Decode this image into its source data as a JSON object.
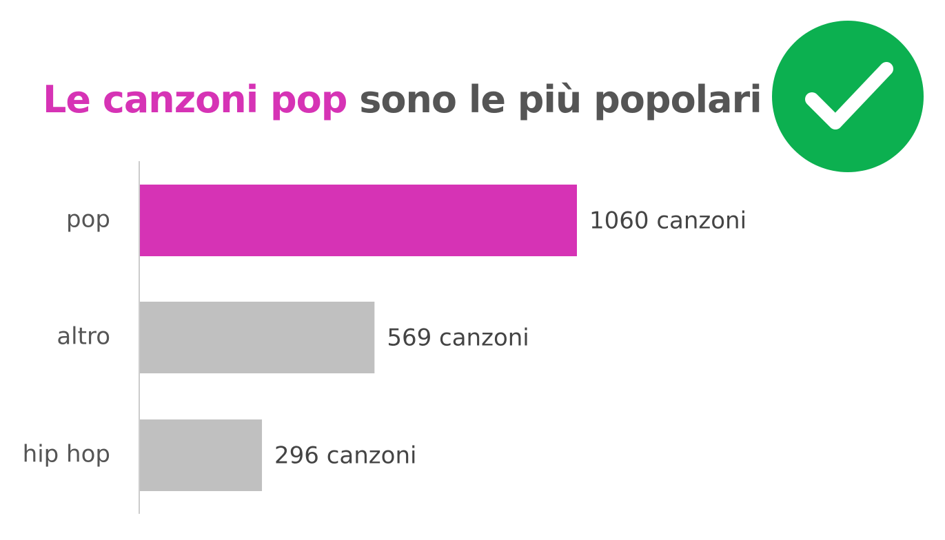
{
  "title": {
    "highlight": "Le canzoni pop",
    "rest": "sono le più popolari",
    "highlight_color": "#d633b5",
    "rest_color": "#555555"
  },
  "badge": {
    "icon": "check-icon",
    "color": "#0cb050"
  },
  "chart_data": {
    "type": "bar",
    "orientation": "horizontal",
    "categories": [
      "pop",
      "altro",
      "hip hop"
    ],
    "values": [
      1060,
      569,
      296
    ],
    "value_labels": [
      "1060 canzoni",
      "569 canzoni",
      "296 canzoni"
    ],
    "colors": [
      "#d633b5",
      "#c0c0c0",
      "#c0c0c0"
    ],
    "xlim": [
      0,
      1060
    ],
    "grid": false,
    "legend": "none"
  }
}
